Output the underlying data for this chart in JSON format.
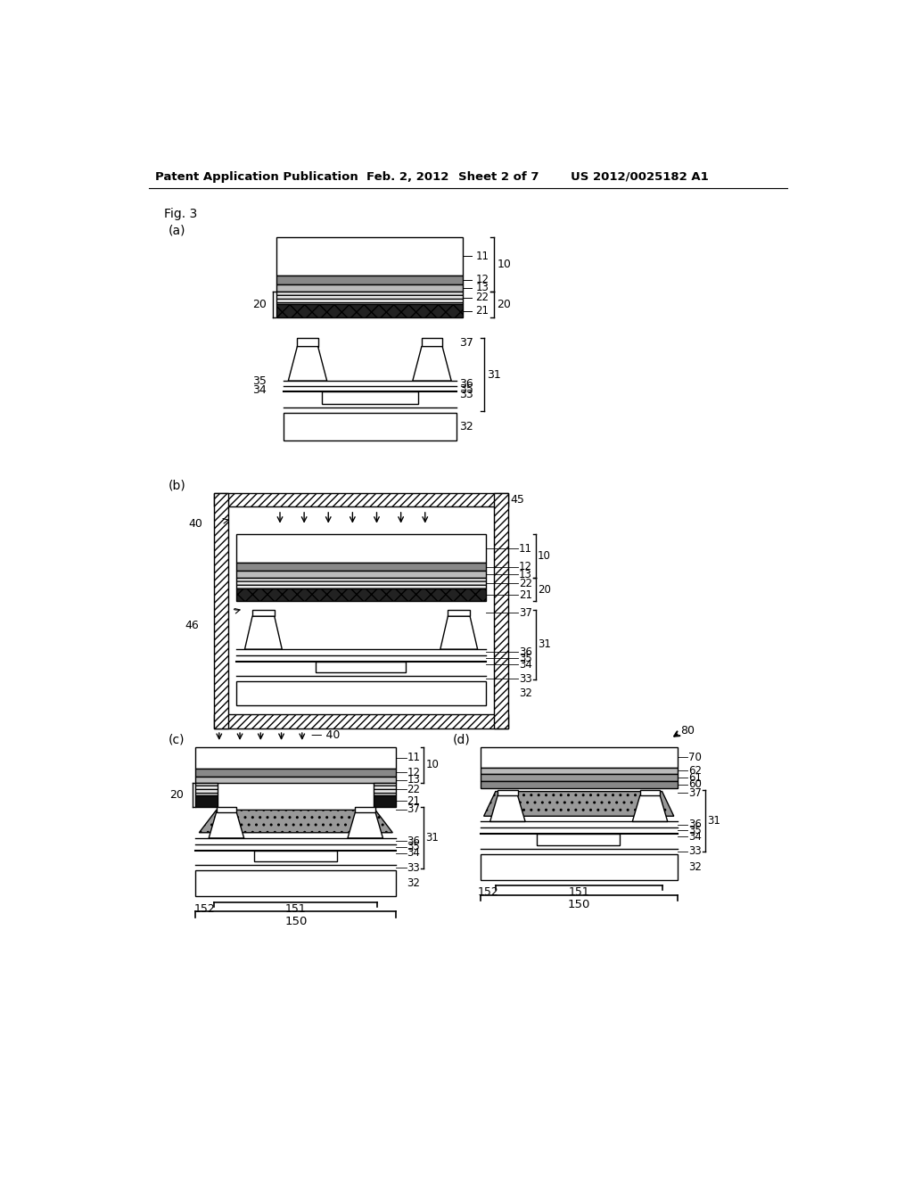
{
  "bg": "#ffffff",
  "lc": "#000000",
  "header": {
    "pub": "Patent Application Publication",
    "date": "Feb. 2, 2012",
    "sheet": "Sheet 2 of 7",
    "num": "US 2012/0025182 A1"
  }
}
